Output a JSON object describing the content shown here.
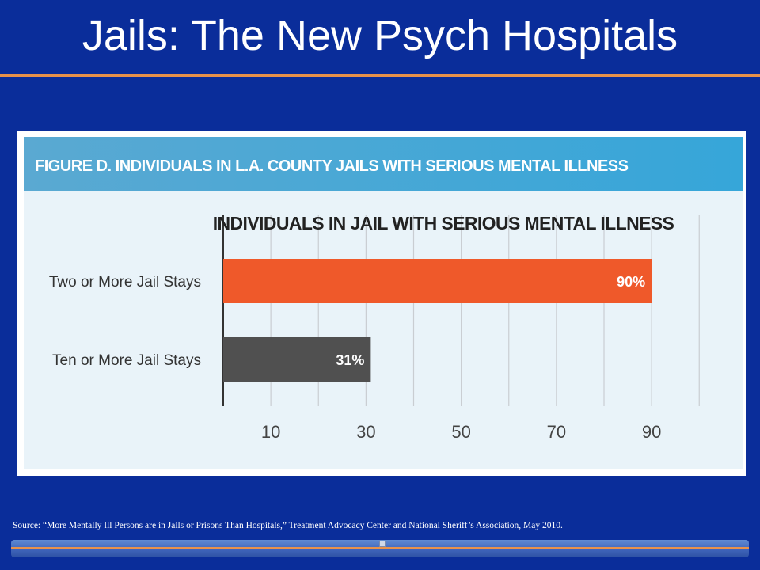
{
  "slide": {
    "title": "Jails: The New Psych Hospitals",
    "source": "Source: “More Mentally Ill Persons are in Jails or Prisons Than Hospitals,” Treatment Advocacy Center and National Sheriff’s Association, May 2010."
  },
  "figure": {
    "header": "FIGURE D. INDIVIDUALS IN L.A. COUNTY JAILS WITH SERIOUS MENTAL ILLNESS"
  },
  "colors": {
    "background": "#0a2d9a",
    "accent": "#e8924a",
    "bar_orange": "#ef592a",
    "bar_gray": "#505050"
  },
  "chart_data": {
    "type": "bar",
    "orientation": "horizontal",
    "title": "INDIVIDUALS IN JAIL WITH SERIOUS MENTAL ILLNESS",
    "categories": [
      "Two or More Jail Stays",
      "Ten or More Jail Stays"
    ],
    "values": [
      90,
      31
    ],
    "value_labels": [
      "90%",
      "31%"
    ],
    "bar_colors": [
      "#ef592a",
      "#505050"
    ],
    "xticks": [
      10,
      30,
      50,
      70,
      90
    ],
    "xlim": [
      0,
      100
    ],
    "grid": true
  }
}
